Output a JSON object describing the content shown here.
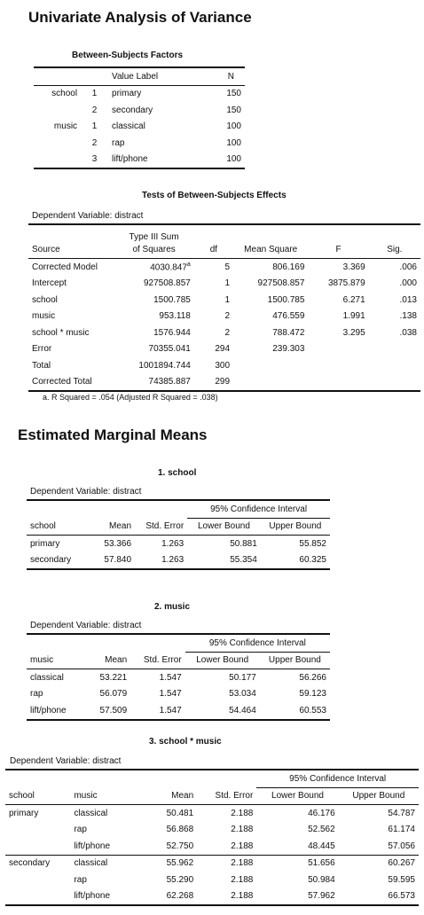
{
  "title": "Univariate Analysis of Variance",
  "between_subjects": {
    "title": "Between-Subjects Factors",
    "headers": [
      "",
      "",
      "Value Label",
      "N"
    ],
    "rows": [
      {
        "factor": "school",
        "value": "1",
        "label": "primary",
        "n": "150"
      },
      {
        "factor": "",
        "value": "2",
        "label": "secondary",
        "n": "150"
      },
      {
        "factor": "music",
        "value": "1",
        "label": "classical",
        "n": "100"
      },
      {
        "factor": "",
        "value": "2",
        "label": "rap",
        "n": "100"
      },
      {
        "factor": "",
        "value": "3",
        "label": "lift/phone",
        "n": "100"
      }
    ]
  },
  "effects": {
    "title": "Tests of Between-Subjects Effects",
    "dependent": "Dependent Variable: distract",
    "headers": {
      "source": "Source",
      "ss_line1": "Type III Sum",
      "ss_line2": "of Squares",
      "df": "df",
      "ms": "Mean Square",
      "f": "F",
      "sig": "Sig."
    },
    "rows": [
      {
        "source": "Corrected Model",
        "ss": "4030.847",
        "ss_note": "a",
        "df": "5",
        "ms": "806.169",
        "f": "3.369",
        "sig": ".006"
      },
      {
        "source": "Intercept",
        "ss": "927508.857",
        "ss_note": "",
        "df": "1",
        "ms": "927508.857",
        "f": "3875.879",
        "sig": ".000"
      },
      {
        "source": "school",
        "ss": "1500.785",
        "ss_note": "",
        "df": "1",
        "ms": "1500.785",
        "f": "6.271",
        "sig": ".013"
      },
      {
        "source": "music",
        "ss": "953.118",
        "ss_note": "",
        "df": "2",
        "ms": "476.559",
        "f": "1.991",
        "sig": ".138"
      },
      {
        "source": "school * music",
        "ss": "1576.944",
        "ss_note": "",
        "df": "2",
        "ms": "788.472",
        "f": "3.295",
        "sig": ".038"
      },
      {
        "source": "Error",
        "ss": "70355.041",
        "ss_note": "",
        "df": "294",
        "ms": "239.303",
        "f": "",
        "sig": ""
      },
      {
        "source": "Total",
        "ss": "1001894.744",
        "ss_note": "",
        "df": "300",
        "ms": "",
        "f": "",
        "sig": ""
      },
      {
        "source": "Corrected Total",
        "ss": "74385.887",
        "ss_note": "",
        "df": "299",
        "ms": "",
        "f": "",
        "sig": ""
      }
    ],
    "footnote": "a. R Squared = .054 (Adjusted R Squared = .038)"
  },
  "emm": {
    "title": "Estimated Marginal Means",
    "ci_label": "95% Confidence Interval",
    "mean_label": "Mean",
    "se_label": "Std. Error",
    "lower_label": "Lower Bound",
    "upper_label": "Upper Bound",
    "school": {
      "title": "1. school",
      "dependent": "Dependent Variable: distract",
      "col": "school",
      "rows": [
        {
          "name": "primary",
          "mean": "53.366",
          "se": "1.263",
          "lower": "50.881",
          "upper": "55.852"
        },
        {
          "name": "secondary",
          "mean": "57.840",
          "se": "1.263",
          "lower": "55.354",
          "upper": "60.325"
        }
      ]
    },
    "music": {
      "title": "2. music",
      "dependent": "Dependent Variable: distract",
      "col": "music",
      "rows": [
        {
          "name": "classical",
          "mean": "53.221",
          "se": "1.547",
          "lower": "50.177",
          "upper": "56.266"
        },
        {
          "name": "rap",
          "mean": "56.079",
          "se": "1.547",
          "lower": "53.034",
          "upper": "59.123"
        },
        {
          "name": "lift/phone",
          "mean": "57.509",
          "se": "1.547",
          "lower": "54.464",
          "upper": "60.553"
        }
      ]
    },
    "interaction": {
      "title": "3. school * music",
      "dependent": "Dependent Variable: distract",
      "col1": "school",
      "col2": "music",
      "rows": [
        {
          "school": "primary",
          "music": "classical",
          "mean": "50.481",
          "se": "2.188",
          "lower": "46.176",
          "upper": "54.787"
        },
        {
          "school": "",
          "music": "rap",
          "mean": "56.868",
          "se": "2.188",
          "lower": "52.562",
          "upper": "61.174"
        },
        {
          "school": "",
          "music": "lift/phone",
          "mean": "52.750",
          "se": "2.188",
          "lower": "48.445",
          "upper": "57.056"
        },
        {
          "school": "secondary",
          "music": "classical",
          "mean": "55.962",
          "se": "2.188",
          "lower": "51.656",
          "upper": "60.267"
        },
        {
          "school": "",
          "music": "rap",
          "mean": "55.290",
          "se": "2.188",
          "lower": "50.984",
          "upper": "59.595"
        },
        {
          "school": "",
          "music": "lift/phone",
          "mean": "62.268",
          "se": "2.188",
          "lower": "57.962",
          "upper": "66.573"
        }
      ]
    }
  }
}
